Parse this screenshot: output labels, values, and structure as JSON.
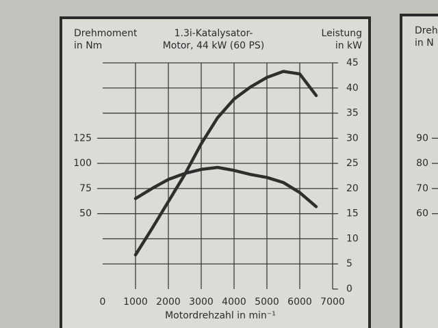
{
  "chart_data": [
    {
      "type": "line",
      "title": [
        "1.3i-Katalysator-",
        "Motor, 44 kW (60 PS)"
      ],
      "ylabel": [
        "Drehmoment",
        "in Nm"
      ],
      "y2label": [
        "Leistung",
        "in kW"
      ],
      "xlabel": "Motordrehzahl in min⁻¹",
      "x": [
        1000,
        1500,
        2000,
        2500,
        3000,
        3500,
        4000,
        4500,
        5000,
        5500,
        6000,
        6500
      ],
      "xlim": [
        0,
        7000
      ],
      "xticks": [
        0,
        1000,
        2000,
        3000,
        4000,
        5000,
        6000,
        7000
      ],
      "ylim": [
        -25,
        200
      ],
      "yticks": [
        50,
        75,
        100,
        125
      ],
      "y2lim": [
        0,
        45
      ],
      "y2ticks": [
        0,
        5,
        10,
        15,
        20,
        25,
        30,
        35,
        40,
        45
      ],
      "grid": true,
      "series": [
        {
          "color": "#2e2e2e",
          "values": [
            65,
            75,
            84,
            90,
            94,
            96,
            93,
            89,
            86,
            81,
            71,
            57
          ]
        },
        {
          "color": "#2e2e2e",
          "axis": "y2",
          "values": [
            6.8,
            12,
            17.4,
            22.8,
            28.9,
            34.1,
            37.8,
            40.2,
            42.1,
            43.3,
            42.8,
            38.5
          ]
        }
      ]
    },
    {
      "type": "line",
      "ylabel": [
        "Drehm",
        "in N"
      ],
      "ylim": [
        30,
        120
      ],
      "yticks": [
        60,
        70,
        80,
        90
      ]
    }
  ]
}
